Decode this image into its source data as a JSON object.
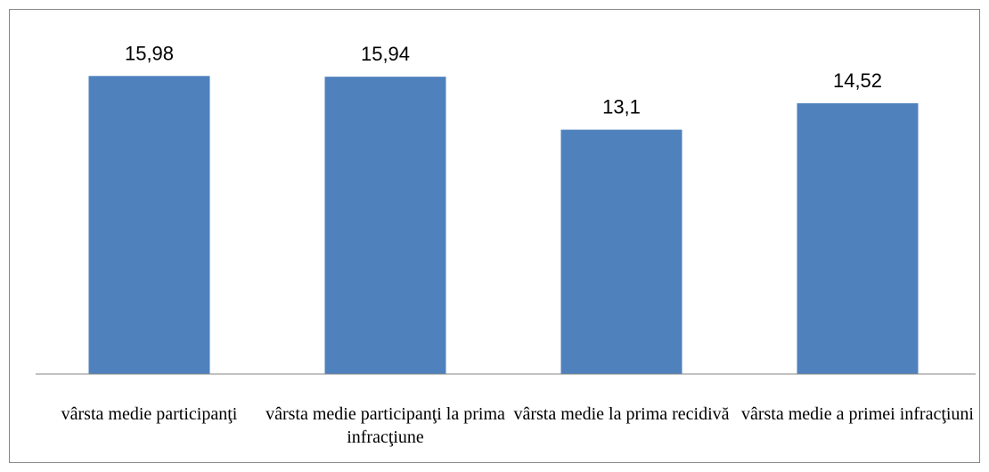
{
  "chart_data": {
    "type": "bar",
    "categories": [
      "vârsta medie participanţi",
      "vârsta medie participanţi la prima infracţiune",
      "vârsta medie la prima recidivă",
      "vârsta medie a primei infracţiuni"
    ],
    "values": [
      15.98,
      15.94,
      13.1,
      14.52
    ],
    "value_labels": [
      "15,98",
      "15,94",
      "13,1",
      "14,52"
    ],
    "color": "#4f81bd",
    "ylim": [
      0,
      18
    ]
  }
}
